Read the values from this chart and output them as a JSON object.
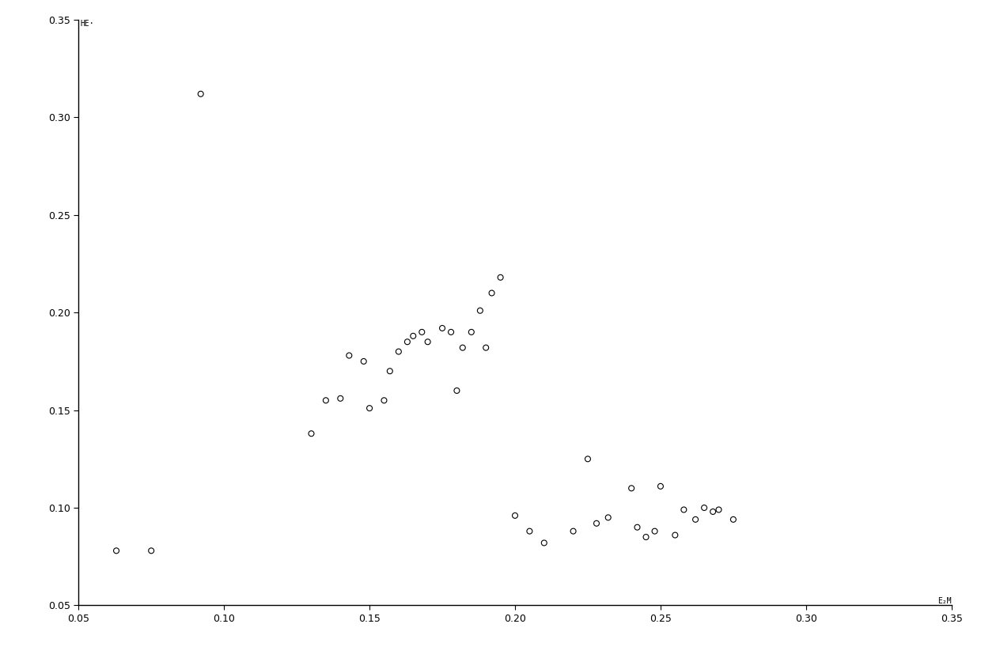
{
  "x": [
    0.063,
    0.075,
    0.092,
    0.13,
    0.135,
    0.14,
    0.143,
    0.148,
    0.15,
    0.155,
    0.157,
    0.16,
    0.163,
    0.165,
    0.168,
    0.17,
    0.175,
    0.178,
    0.18,
    0.182,
    0.185,
    0.188,
    0.19,
    0.192,
    0.195,
    0.2,
    0.205,
    0.21,
    0.22,
    0.225,
    0.228,
    0.232,
    0.24,
    0.242,
    0.245,
    0.248,
    0.25,
    0.255,
    0.258,
    0.262,
    0.265,
    0.268,
    0.27,
    0.275
  ],
  "y": [
    0.078,
    0.078,
    0.312,
    0.138,
    0.155,
    0.156,
    0.178,
    0.175,
    0.151,
    0.155,
    0.17,
    0.18,
    0.185,
    0.188,
    0.19,
    0.185,
    0.192,
    0.19,
    0.16,
    0.182,
    0.19,
    0.201,
    0.182,
    0.21,
    0.218,
    0.096,
    0.088,
    0.082,
    0.088,
    0.125,
    0.092,
    0.095,
    0.11,
    0.09,
    0.085,
    0.088,
    0.111,
    0.086,
    0.099,
    0.094,
    0.1,
    0.098,
    0.099,
    0.094
  ],
  "ylabel": "HE·",
  "xlabel": "E₂M",
  "xlim": [
    0.05,
    0.35
  ],
  "ylim": [
    0.05,
    0.35
  ],
  "xticks": [
    0.05,
    0.1,
    0.15,
    0.2,
    0.25,
    0.3,
    0.35
  ],
  "yticks": [
    0.05,
    0.1,
    0.15,
    0.2,
    0.25,
    0.3,
    0.35
  ],
  "marker_size": 5,
  "marker_color": "black",
  "background_color": "white",
  "figsize": [
    12.4,
    8.32
  ],
  "dpi": 100
}
